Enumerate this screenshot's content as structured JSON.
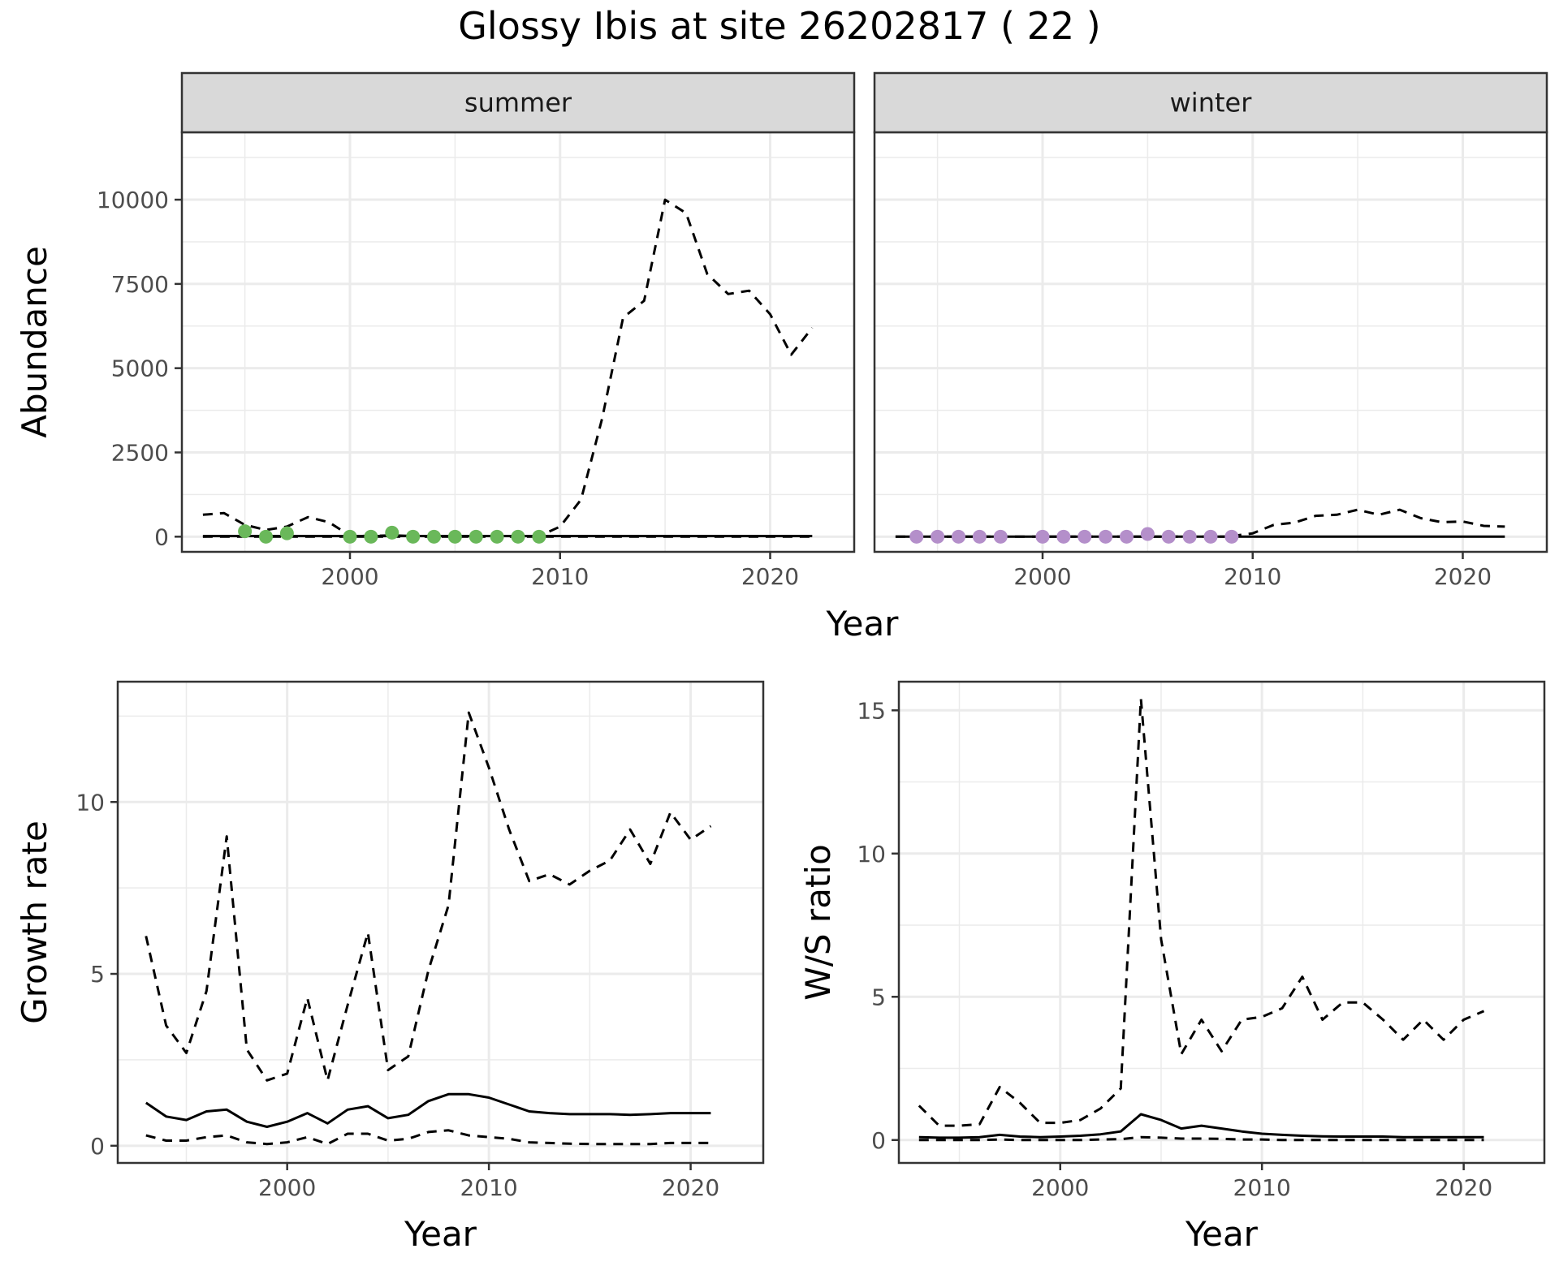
{
  "title": "Glossy Ibis at site 26202817 ( 22 )",
  "colors": {
    "summer_points": "#6ab85a",
    "winter_points": "#b48fca",
    "lines": "#000000",
    "strip_bg": "#d9d9d9",
    "grid": "#ebebeb"
  },
  "chart_data": [
    {
      "type": "line",
      "panel": "summer",
      "strip": "summer",
      "xlabel": "Year",
      "ylabel": "Abundance",
      "xlim": [
        1992,
        2024
      ],
      "ylim": [
        -450,
        12000
      ],
      "xticks": [
        2000,
        2010,
        2020
      ],
      "yticks": [
        0,
        2500,
        5000,
        7500,
        10000
      ],
      "grid": true,
      "series": [
        {
          "role": "estimate",
          "style": "solid",
          "x": [
            1993,
            2022
          ],
          "y": [
            20,
            20
          ]
        },
        {
          "role": "lower",
          "style": "dashed",
          "x": [
            1993,
            2022
          ],
          "y": [
            0,
            0
          ]
        },
        {
          "role": "upper",
          "style": "dashed",
          "x": [
            1993,
            1994,
            1995,
            1996,
            1997,
            1998,
            1999,
            2000,
            2001,
            2002,
            2003,
            2004,
            2005,
            2006,
            2007,
            2008,
            2009,
            2010,
            2011,
            2012,
            2013,
            2014,
            2015,
            2016,
            2017,
            2018,
            2019,
            2020,
            2021,
            2022
          ],
          "y": [
            650,
            700,
            350,
            200,
            300,
            580,
            430,
            30,
            20,
            40,
            20,
            20,
            20,
            20,
            20,
            20,
            20,
            300,
            1100,
            3500,
            6500,
            7000,
            10000,
            9600,
            7800,
            7200,
            7300,
            6600,
            5400,
            6200
          ]
        }
      ],
      "points": {
        "x": [
          1995,
          1996,
          1997,
          2000,
          2001,
          2002,
          2003,
          2004,
          2005,
          2006,
          2007,
          2008,
          2009
        ],
        "y": [
          160,
          0,
          100,
          0,
          0,
          120,
          0,
          0,
          0,
          0,
          0,
          0,
          0
        ]
      }
    },
    {
      "type": "line",
      "panel": "winter",
      "strip": "winter",
      "xlabel": "Year",
      "ylabel": "Abundance",
      "xlim": [
        1992,
        2024
      ],
      "ylim": [
        -450,
        12000
      ],
      "xticks": [
        2000,
        2010,
        2020
      ],
      "yticks": [
        0,
        2500,
        5000,
        7500,
        10000
      ],
      "grid": true,
      "series": [
        {
          "role": "estimate",
          "style": "solid",
          "x": [
            1993,
            2022
          ],
          "y": [
            0,
            0
          ]
        },
        {
          "role": "lower",
          "style": "dashed",
          "x": [
            1993,
            2009
          ],
          "y": [
            0,
            0
          ]
        },
        {
          "role": "upper",
          "style": "dashed",
          "x": [
            2009,
            2010,
            2011,
            2012,
            2013,
            2014,
            2015,
            2016,
            2017,
            2018,
            2019,
            2020,
            2021,
            2022
          ],
          "y": [
            20,
            100,
            350,
            420,
            620,
            650,
            800,
            650,
            800,
            550,
            430,
            450,
            320,
            300
          ]
        }
      ],
      "points": {
        "x": [
          1994,
          1995,
          1996,
          1997,
          1998,
          2000,
          2001,
          2002,
          2003,
          2004,
          2005,
          2006,
          2007,
          2008,
          2009
        ],
        "y": [
          0,
          0,
          0,
          0,
          0,
          0,
          0,
          0,
          0,
          0,
          80,
          0,
          0,
          0,
          0
        ]
      }
    },
    {
      "type": "line",
      "panel": "growth",
      "xlabel": "Year",
      "ylabel": "Growth rate",
      "xlim": [
        1991.6,
        2023.6
      ],
      "ylim": [
        -0.5,
        13.5
      ],
      "xticks": [
        2000,
        2010,
        2020
      ],
      "yticks": [
        0,
        5,
        10
      ],
      "grid": true,
      "series": [
        {
          "role": "estimate",
          "style": "solid",
          "x": [
            1993,
            1994,
            1995,
            1996,
            1997,
            1998,
            1999,
            2000,
            2001,
            2002,
            2003,
            2004,
            2005,
            2006,
            2007,
            2008,
            2009,
            2010,
            2011,
            2012,
            2013,
            2014,
            2015,
            2016,
            2017,
            2018,
            2019,
            2020,
            2021
          ],
          "y": [
            1.25,
            0.85,
            0.75,
            1.0,
            1.05,
            0.7,
            0.55,
            0.7,
            0.95,
            0.65,
            1.05,
            1.15,
            0.8,
            0.9,
            1.3,
            1.5,
            1.5,
            1.4,
            1.2,
            1.0,
            0.95,
            0.92,
            0.92,
            0.92,
            0.9,
            0.92,
            0.95,
            0.95,
            0.95
          ]
        },
        {
          "role": "lower",
          "style": "dashed",
          "x": [
            1993,
            1994,
            1995,
            1996,
            1997,
            1998,
            1999,
            2000,
            2001,
            2002,
            2003,
            2004,
            2005,
            2006,
            2007,
            2008,
            2009,
            2010,
            2011,
            2012,
            2013,
            2014,
            2015,
            2016,
            2017,
            2018,
            2019,
            2020,
            2021
          ],
          "y": [
            0.3,
            0.15,
            0.15,
            0.25,
            0.3,
            0.1,
            0.05,
            0.1,
            0.25,
            0.05,
            0.35,
            0.35,
            0.15,
            0.2,
            0.4,
            0.45,
            0.3,
            0.25,
            0.2,
            0.1,
            0.08,
            0.06,
            0.05,
            0.05,
            0.05,
            0.05,
            0.08,
            0.08,
            0.08
          ]
        },
        {
          "role": "upper",
          "style": "dashed",
          "x": [
            1993,
            1994,
            1995,
            1996,
            1997,
            1998,
            1999,
            2000,
            2001,
            2002,
            2003,
            2004,
            2005,
            2006,
            2007,
            2008,
            2009,
            2010,
            2011,
            2012,
            2013,
            2014,
            2015,
            2016,
            2017,
            2018,
            2019,
            2020,
            2021
          ],
          "y": [
            6.1,
            3.5,
            2.7,
            4.5,
            9.0,
            2.8,
            1.9,
            2.1,
            4.3,
            1.9,
            4.1,
            6.2,
            2.2,
            2.6,
            5.1,
            7.0,
            12.6,
            11.0,
            9.2,
            7.7,
            7.9,
            7.6,
            8.0,
            8.3,
            9.2,
            8.2,
            9.7,
            8.9,
            9.3
          ]
        }
      ]
    },
    {
      "type": "line",
      "panel": "ratio",
      "xlabel": "Year",
      "ylabel": "W/S ratio",
      "xlim": [
        1992,
        2024
      ],
      "ylim": [
        -0.8,
        16
      ],
      "xticks": [
        2000,
        2010,
        2020
      ],
      "yticks": [
        0,
        5,
        10,
        15
      ],
      "grid": true,
      "series": [
        {
          "role": "estimate",
          "style": "solid",
          "x": [
            1993,
            1994,
            1995,
            1996,
            1997,
            1998,
            1999,
            2000,
            2001,
            2002,
            2003,
            2004,
            2005,
            2006,
            2007,
            2008,
            2009,
            2010,
            2011,
            2012,
            2013,
            2014,
            2015,
            2016,
            2017,
            2018,
            2019,
            2020,
            2021
          ],
          "y": [
            0.1,
            0.08,
            0.08,
            0.1,
            0.18,
            0.12,
            0.1,
            0.12,
            0.15,
            0.2,
            0.3,
            0.9,
            0.7,
            0.4,
            0.5,
            0.4,
            0.3,
            0.22,
            0.18,
            0.15,
            0.13,
            0.12,
            0.12,
            0.12,
            0.1,
            0.1,
            0.1,
            0.1,
            0.1
          ]
        },
        {
          "role": "lower",
          "style": "dashed",
          "x": [
            1993,
            1994,
            1995,
            1996,
            1997,
            1998,
            1999,
            2000,
            2001,
            2002,
            2003,
            2004,
            2005,
            2006,
            2007,
            2008,
            2009,
            2010,
            2011,
            2012,
            2013,
            2014,
            2015,
            2016,
            2017,
            2018,
            2019,
            2020,
            2021
          ],
          "y": [
            0.0,
            0.0,
            0.0,
            0.0,
            0.02,
            0.0,
            0.0,
            0.0,
            0.0,
            0.02,
            0.03,
            0.1,
            0.08,
            0.05,
            0.05,
            0.04,
            0.02,
            0.02,
            0.0,
            0.0,
            0.0,
            0.0,
            0.0,
            0.0,
            0.0,
            0.0,
            0.0,
            0.0,
            0.0
          ]
        },
        {
          "role": "upper",
          "style": "dashed",
          "x": [
            1993,
            1994,
            1995,
            1996,
            1997,
            1998,
            1999,
            2000,
            2001,
            2002,
            2003,
            2004,
            2005,
            2006,
            2007,
            2008,
            2009,
            2010,
            2011,
            2012,
            2013,
            2014,
            2015,
            2016,
            2017,
            2018,
            2019,
            2020,
            2021
          ],
          "y": [
            1.2,
            0.5,
            0.5,
            0.55,
            1.85,
            1.3,
            0.6,
            0.6,
            0.7,
            1.1,
            1.8,
            15.4,
            7.0,
            3.0,
            4.2,
            3.1,
            4.2,
            4.3,
            4.6,
            5.7,
            4.2,
            4.8,
            4.8,
            4.2,
            3.5,
            4.2,
            3.5,
            4.2,
            4.5
          ]
        }
      ]
    }
  ]
}
